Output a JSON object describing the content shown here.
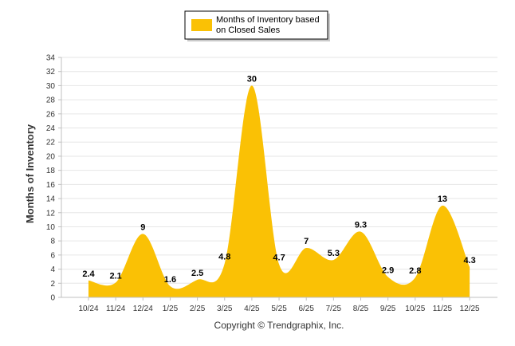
{
  "chart_data": {
    "type": "area",
    "categories": [
      "10/24",
      "11/24",
      "12/24",
      "1/25",
      "2/25",
      "3/25",
      "4/25",
      "5/25",
      "6/25",
      "7/25",
      "8/25",
      "9/25",
      "10/25",
      "11/25",
      "12/25"
    ],
    "series": [
      {
        "name": "Months of Inventory based on Closed Sales",
        "values": [
          2.4,
          2.1,
          9,
          1.6,
          2.5,
          4.8,
          30,
          4.7,
          7,
          5.3,
          9.3,
          2.9,
          2.8,
          13,
          4.3
        ],
        "value_labels": [
          "2.4",
          "2.1",
          "9",
          "1.6",
          "2.5",
          "4.8",
          "30",
          "4.7",
          "7",
          "5.3",
          "9.3",
          "2.9",
          "2.8",
          "13",
          "4.3"
        ],
        "color": "#FAC105"
      }
    ],
    "title": "",
    "xlabel": "",
    "ylabel": "Months of Inventory",
    "ylim": [
      0,
      34
    ],
    "yticks": [
      0,
      2,
      4,
      6,
      8,
      10,
      12,
      14,
      16,
      18,
      20,
      22,
      24,
      26,
      28,
      30,
      32,
      34
    ],
    "grid": true,
    "legend": {
      "position": "top-center",
      "lines": [
        "Months of Inventory based",
        "on Closed Sales"
      ]
    },
    "footer": "Copyright © Trendgraphix, Inc.",
    "gridline_color": "#E6E6E6",
    "axis_color": "#C0C0C0"
  }
}
